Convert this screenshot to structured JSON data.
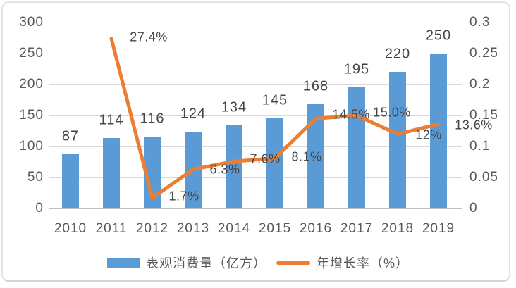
{
  "chart_data": {
    "type": "bar+line",
    "title": "",
    "categories": [
      "2010",
      "2011",
      "2012",
      "2013",
      "2014",
      "2015",
      "2016",
      "2017",
      "2018",
      "2019"
    ],
    "series": [
      {
        "name": "表观消费量（亿方）",
        "type": "bar",
        "axis": "left",
        "color": "#5B9BD5",
        "values": [
          87,
          114,
          116,
          124,
          134,
          145,
          168,
          195,
          220,
          250
        ],
        "labels": [
          "87",
          "114",
          "116",
          "124",
          "134",
          "145",
          "168",
          "195",
          "220",
          "250"
        ]
      },
      {
        "name": "年增长率（%）",
        "type": "line",
        "axis": "right",
        "color": "#ED7D31",
        "values": [
          null,
          0.274,
          0.017,
          0.063,
          0.076,
          0.081,
          0.145,
          0.15,
          0.12,
          0.136
        ],
        "labels": [
          null,
          "27.4%",
          "1.7%",
          "6.3%",
          "7.6%",
          "8.1%",
          "14.5%",
          "15.0%",
          "12%",
          "13.6%"
        ]
      }
    ],
    "left_axis": {
      "min": 0,
      "max": 300,
      "step": 50,
      "ticks_top_down": [
        "300",
        "250",
        "200",
        "150",
        "100",
        "50",
        "0"
      ]
    },
    "right_axis": {
      "min": 0,
      "max": 0.3,
      "step": 0.05,
      "ticks_top_down": [
        "0.3",
        "0.25",
        "0.2",
        "0.15",
        "0.1",
        "0.05",
        "0"
      ]
    },
    "grid": true,
    "legend_position": "bottom"
  },
  "legend": {
    "items": [
      {
        "label": "表观消费量（亿方）",
        "swatch": "bar",
        "color": "#5B9BD5"
      },
      {
        "label": "年增长率（%）",
        "swatch": "line",
        "color": "#ED7D31"
      }
    ]
  },
  "colors": {
    "bar": "#5B9BD5",
    "line": "#ED7D31",
    "grid": "#D9D9D9",
    "axis_line": "#BFBFBF",
    "axis_text": "#595959",
    "value_text": "#444444",
    "card_border": "#E3E3E3",
    "background": "#FFFFFF"
  }
}
